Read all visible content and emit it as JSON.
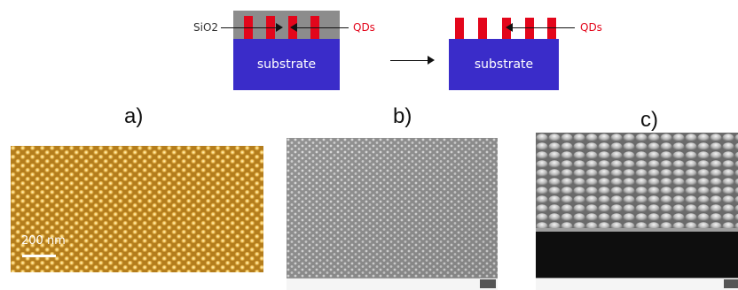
{
  "schematic": {
    "left": {
      "sio2_label": "SiO2",
      "qds_label": "QDs",
      "substrate_label": "substrate"
    },
    "right": {
      "qds_label": "QDs",
      "substrate_label": "substrate"
    },
    "colors": {
      "substrate": "#3a2cc9",
      "sio2": "#8c8c8c",
      "qds": "#e3061b"
    }
  },
  "panels": [
    {
      "letter": "a)",
      "scale_text": "200 nm"
    },
    {
      "letter": "b)"
    },
    {
      "letter": "c)"
    }
  ]
}
